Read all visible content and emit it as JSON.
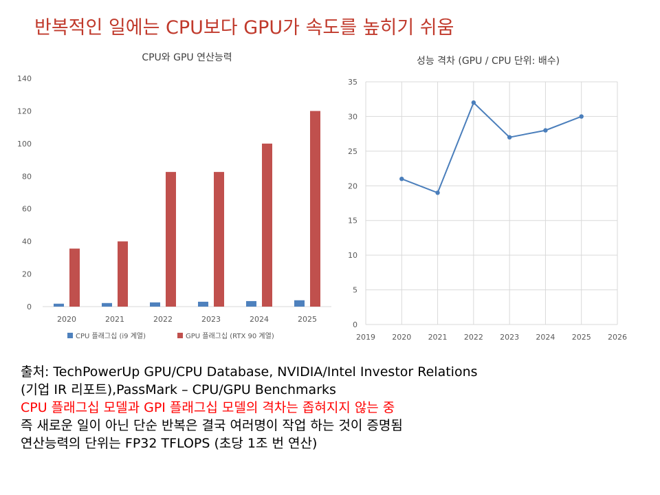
{
  "title": "반복적인 일에는 CPU보다 GPU가 속도를 높히기 쉬움",
  "colors": {
    "title": "#c0392b",
    "cpu_bar": "#4e81bd",
    "gpu_bar": "#c0504d",
    "line": "#4a7ebb",
    "highlight": "#ff0000"
  },
  "chart_data": [
    {
      "type": "bar",
      "title": "CPU와 GPU 연산능력",
      "categories": [
        "2020",
        "2021",
        "2022",
        "2023",
        "2024",
        "2025"
      ],
      "series": [
        {
          "name": "CPU 플래그십 (i9 계열)",
          "values": [
            1.8,
            2.2,
            2.6,
            3.0,
            3.4,
            3.9
          ]
        },
        {
          "name": "GPU 플래그십 (RTX 90 계열)",
          "values": [
            35.6,
            40,
            82.6,
            82.6,
            100,
            120
          ]
        }
      ],
      "ylim": [
        0,
        140
      ],
      "yticks": [
        0,
        20,
        40,
        60,
        80,
        100,
        120,
        140
      ],
      "grid": false,
      "legend": "bottom"
    },
    {
      "type": "line",
      "title": "성능 격차 (GPU / CPU 단위: 배수)",
      "x": [
        2020,
        2021,
        2022,
        2023,
        2024,
        2025
      ],
      "y": [
        21,
        19,
        32,
        27,
        28,
        30
      ],
      "xlim": [
        2019,
        2026
      ],
      "xticks": [
        2019,
        2020,
        2021,
        2022,
        2023,
        2024,
        2025,
        2026
      ],
      "ylim": [
        0,
        35
      ],
      "yticks": [
        0,
        5,
        10,
        15,
        20,
        25,
        30,
        35
      ],
      "grid": true
    }
  ],
  "notes": [
    "출처: TechPowerUp GPU/CPU Database, NVIDIA/Intel Investor Relations",
    "(기업 IR 리포트),PassMark – CPU/GPU Benchmarks",
    "CPU 플래그십 모델과 GPI 플래그십 모델의 격차는 좁혀지지 않는 중",
    "즉 새로운 일이 아닌 단순 반복은 결국 여러명이 작업 하는 것이 증명됨",
    "연산능력의 단위는 FP32 TFLOPS (초당 1조 번 연산)"
  ]
}
